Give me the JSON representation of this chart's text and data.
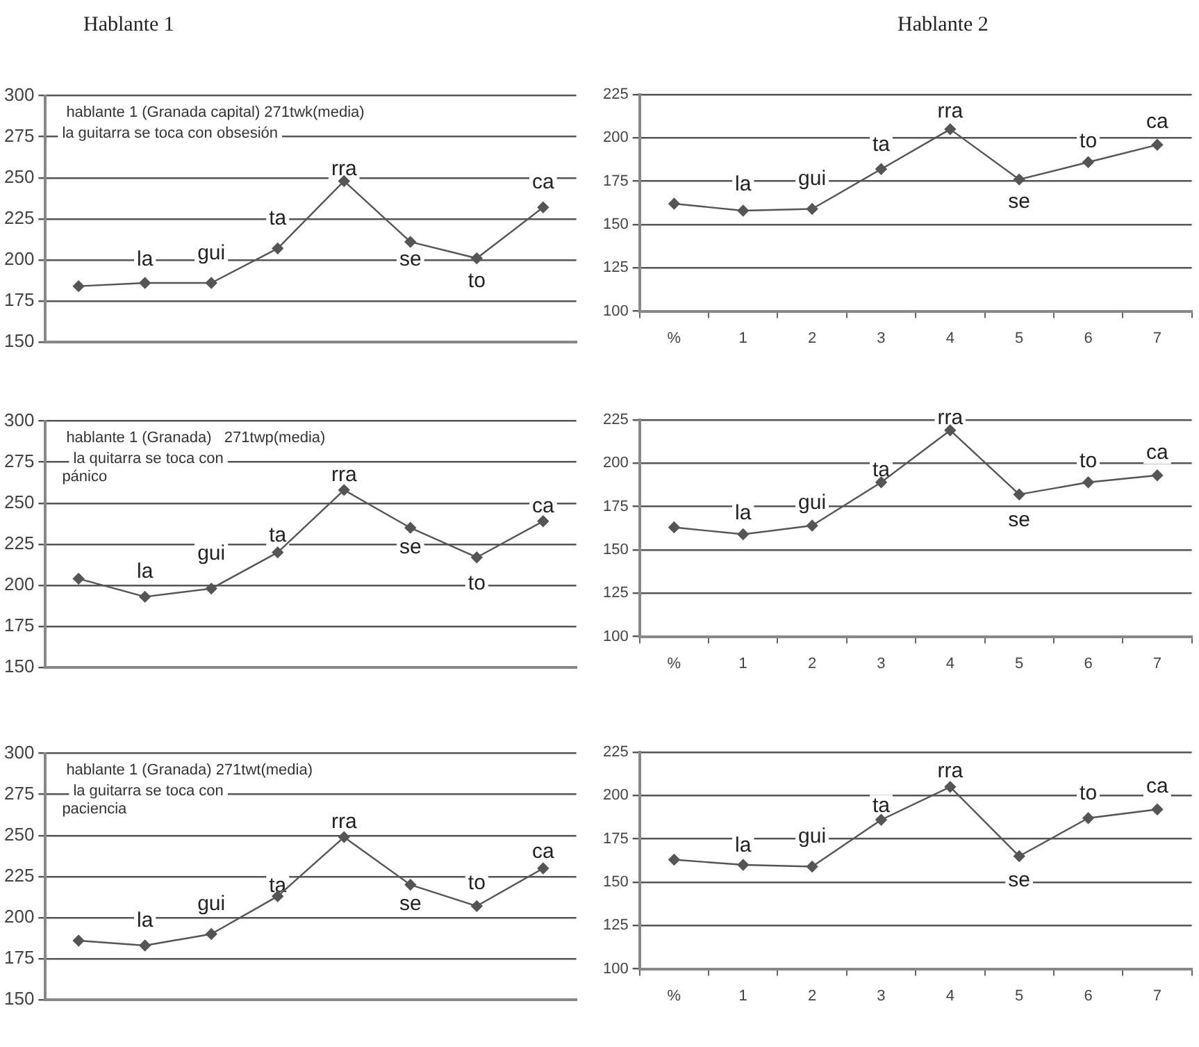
{
  "chart_data": [
    {
      "type": "line",
      "title": "hablante 1 (Granada capital) 271twk(media)",
      "subtitle": "la guitarra se toca con obsesión",
      "categories": [
        null,
        null,
        null,
        null,
        null,
        null,
        null,
        null
      ],
      "series": [
        {
          "color": "#555555",
          "values": [
            184,
            186,
            186,
            207,
            248,
            211,
            201,
            232
          ]
        }
      ],
      "ylim": [
        150,
        300
      ],
      "yticks": [
        150,
        175,
        200,
        225,
        250,
        275,
        300
      ],
      "grid": "y",
      "legend": false,
      "tick_labels": "y",
      "marker": "diamond",
      "line_style": "solid",
      "annotations": [
        "Hablante 1",
        {
          "text": "la",
          "y": 200
        },
        {
          "text": "gui",
          "y": 204
        },
        {
          "text": "ta",
          "y": 225
        },
        {
          "text": "rra",
          "y": 255
        },
        {
          "text": "se",
          "y": 200
        },
        {
          "text": "to",
          "y": 187
        },
        {
          "text": "ca",
          "y": 247
        }
      ]
    },
    {
      "type": "line",
      "categories": [
        "%",
        "1",
        "2",
        "3",
        "4",
        "5",
        "6",
        "7"
      ],
      "series": [
        {
          "color": "#555555",
          "values": [
            162,
            158,
            159,
            182,
            205,
            176,
            186,
            196
          ]
        }
      ],
      "ylim": [
        100,
        225
      ],
      "yticks": [
        100,
        125,
        150,
        175,
        200,
        225
      ],
      "grid": "y",
      "legend": false,
      "marker": "diamond",
      "line_style": "solid",
      "annotations": [
        "Hablante 2",
        {
          "text": "la",
          "x": "1",
          "y": 173
        },
        {
          "text": "gui",
          "x": "2",
          "y": 176
        },
        {
          "text": "ta",
          "x": "3",
          "y": 196
        },
        {
          "text": "rra",
          "x": "4",
          "y": 215
        },
        {
          "text": "se",
          "x": "5",
          "y": 163
        },
        {
          "text": "to",
          "x": "6",
          "y": 198
        },
        {
          "text": "ca",
          "x": "7",
          "y": 209
        }
      ]
    },
    {
      "type": "line",
      "title": "hablante 1 (Granada)   271twp(media)",
      "subtitle": "la quitarra se toca con pánico",
      "categories": [
        null,
        null,
        null,
        null,
        null,
        null,
        null,
        null
      ],
      "series": [
        {
          "color": "#555555",
          "values": [
            204,
            193,
            198,
            220,
            258,
            235,
            217,
            239
          ]
        }
      ],
      "ylim": [
        150,
        300
      ],
      "yticks": [
        150,
        175,
        200,
        225,
        250,
        275,
        300
      ],
      "grid": "y",
      "legend": false,
      "tick_labels": "y",
      "marker": "diamond",
      "line_style": "solid",
      "annotations": [
        {
          "text": "la",
          "y": 208
        },
        {
          "text": "gui",
          "y": 219
        },
        {
          "text": "ta",
          "y": 230
        },
        {
          "text": "rra",
          "y": 267
        },
        {
          "text": "se",
          "y": 223
        },
        {
          "text": "to",
          "y": 201
        },
        {
          "text": "ca",
          "y": 248
        }
      ]
    },
    {
      "type": "line",
      "categories": [
        "%",
        "1",
        "2",
        "3",
        "4",
        "5",
        "6",
        "7"
      ],
      "series": [
        {
          "color": "#555555",
          "values": [
            163,
            159,
            164,
            189,
            219,
            182,
            189,
            193
          ]
        }
      ],
      "ylim": [
        100,
        225
      ],
      "yticks": [
        100,
        125,
        150,
        175,
        200,
        225
      ],
      "grid": "y",
      "legend": false,
      "marker": "diamond",
      "line_style": "solid",
      "annotations": [
        {
          "text": "la",
          "x": "1",
          "y": 171
        },
        {
          "text": "gui",
          "x": "2",
          "y": 177
        },
        {
          "text": "ta",
          "x": "3",
          "y": 196
        },
        {
          "text": "rra",
          "x": "4",
          "y": 226
        },
        {
          "text": "se",
          "x": "5",
          "y": 167
        },
        {
          "text": "to",
          "x": "6",
          "y": 201
        },
        {
          "text": "ca",
          "x": "7",
          "y": 206
        }
      ]
    },
    {
      "type": "line",
      "title": "hablante 1 (Granada) 271twt(media)",
      "subtitle": "la guitarra se toca con paciencia",
      "categories": [
        null,
        null,
        null,
        null,
        null,
        null,
        null,
        null
      ],
      "series": [
        {
          "color": "#555555",
          "values": [
            186,
            183,
            190,
            213,
            249,
            220,
            207,
            230
          ]
        }
      ],
      "ylim": [
        150,
        300
      ],
      "yticks": [
        150,
        175,
        200,
        225,
        250,
        275,
        300
      ],
      "grid": "y",
      "legend": false,
      "tick_labels": "y",
      "marker": "diamond",
      "line_style": "solid",
      "annotations": [
        {
          "text": "la",
          "y": 198
        },
        {
          "text": "gui",
          "y": 208
        },
        {
          "text": "ta",
          "y": 219
        },
        {
          "text": "rra",
          "y": 258
        },
        {
          "text": "se",
          "y": 208
        },
        {
          "text": "to",
          "y": 221
        },
        {
          "text": "ca",
          "y": 240
        }
      ]
    },
    {
      "type": "line",
      "categories": [
        "%",
        "1",
        "2",
        "3",
        "4",
        "5",
        "6",
        "7"
      ],
      "series": [
        {
          "color": "#555555",
          "values": [
            163,
            160,
            159,
            186,
            205,
            165,
            187,
            192
          ]
        }
      ],
      "ylim": [
        100,
        225
      ],
      "yticks": [
        100,
        125,
        150,
        175,
        200,
        225
      ],
      "grid": "y",
      "legend": false,
      "marker": "diamond",
      "line_style": "solid",
      "annotations": [
        {
          "text": "la",
          "x": "1",
          "y": 171
        },
        {
          "text": "gui",
          "x": "2",
          "y": 176
        },
        {
          "text": "ta",
          "x": "3",
          "y": 194
        },
        {
          "text": "rra",
          "x": "4",
          "y": 214
        },
        {
          "text": "se",
          "x": "5",
          "y": 151
        },
        {
          "text": "to",
          "x": "6",
          "y": 201
        },
        {
          "text": "ca",
          "x": "7",
          "y": 205
        }
      ]
    }
  ]
}
